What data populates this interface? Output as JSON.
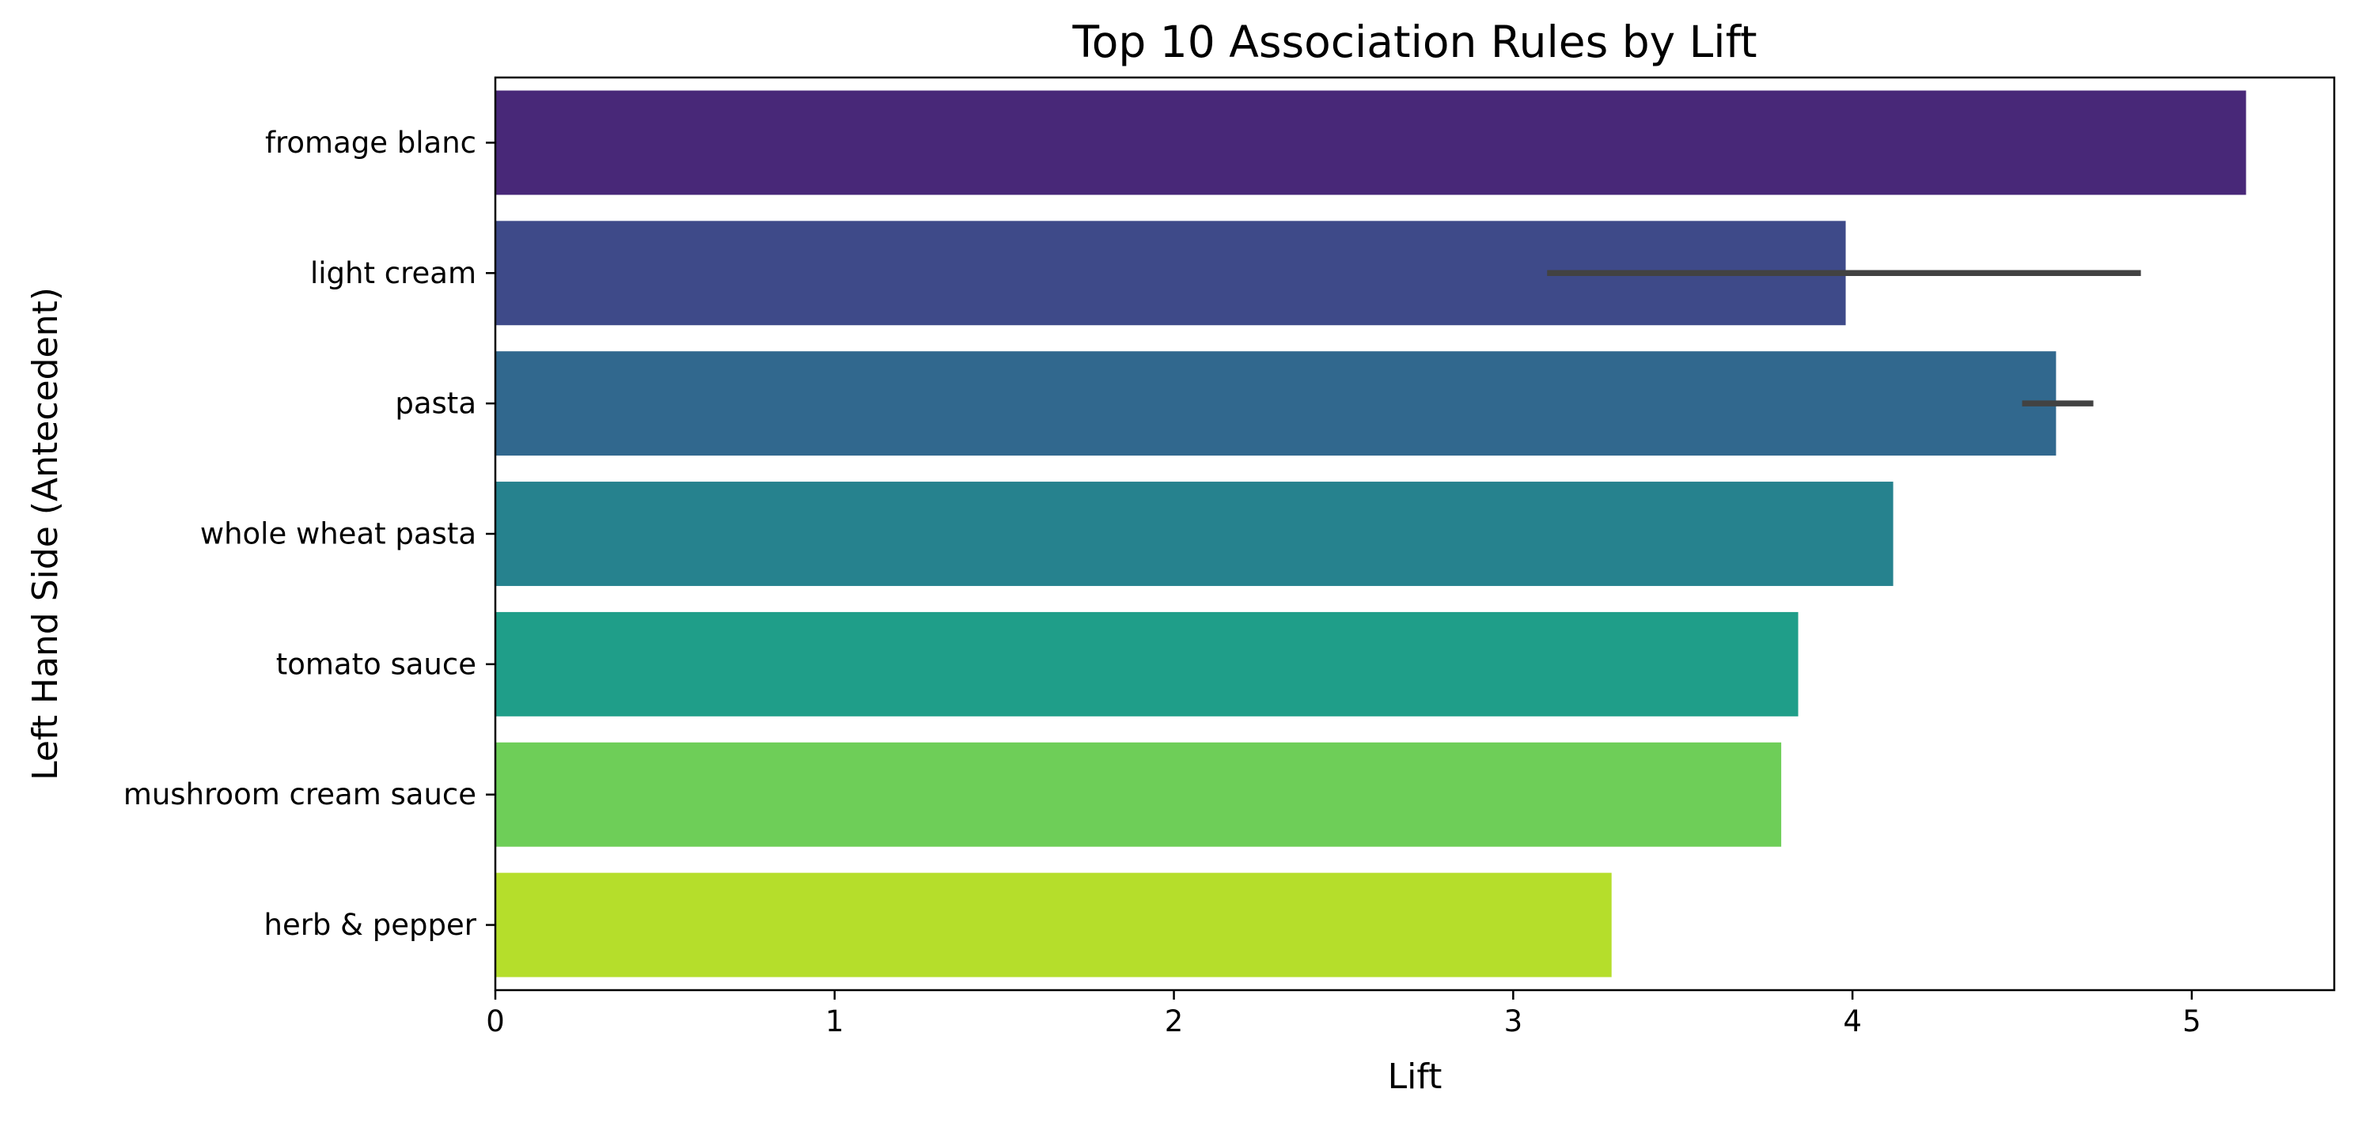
{
  "chart_data": {
    "type": "bar",
    "orientation": "horizontal",
    "title": "Top 10 Association Rules by Lift",
    "xlabel": "Lift",
    "ylabel": "Left Hand Side (Antecedent)",
    "xlim": [
      0,
      5.42
    ],
    "x_ticks": [
      0,
      1,
      2,
      3,
      4,
      5
    ],
    "grid": false,
    "categories": [
      "fromage blanc",
      "light cream",
      "pasta",
      "whole wheat pasta",
      "tomato sauce",
      "mushroom cream sauce",
      "herb & pepper"
    ],
    "values": [
      5.16,
      3.98,
      4.6,
      4.12,
      3.84,
      3.79,
      3.29
    ],
    "error_bars": [
      null,
      [
        3.1,
        4.85
      ],
      [
        4.5,
        4.71
      ],
      null,
      null,
      null,
      null
    ],
    "colors": [
      "#482878",
      "#3e4a89",
      "#31688e",
      "#26828e",
      "#1f9e89",
      "#6ece58",
      "#b5de2b"
    ],
    "error_bar_color": "#424242"
  }
}
